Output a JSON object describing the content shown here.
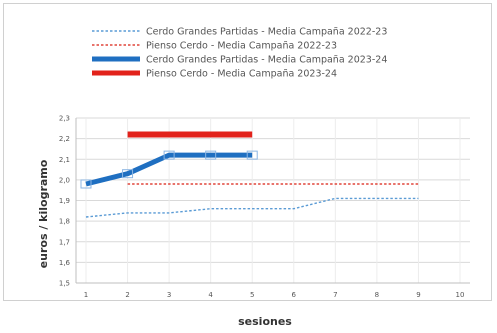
{
  "chart_data": {
    "type": "line",
    "xlabel": "sesiones",
    "ylabel": "euros / kilogramo",
    "x": [
      1,
      2,
      3,
      4,
      5,
      6,
      7,
      8,
      9,
      10
    ],
    "xlim": [
      1,
      10
    ],
    "ylim": [
      1.5,
      2.3
    ],
    "yticks": [
      "1,5",
      "1,6",
      "1,7",
      "1,8",
      "1,9",
      "2,0",
      "2,1",
      "2,2",
      "2,3"
    ],
    "legend_position": "top",
    "grid": true,
    "series": [
      {
        "name": "Cerdo Grandes Partidas - Media Campaña 2022-23",
        "style": "dotted",
        "width": 1.4,
        "color": "#5a9bd5",
        "x": [
          1,
          2,
          3,
          4,
          5,
          6,
          7,
          8,
          9
        ],
        "y": [
          1.82,
          1.84,
          1.84,
          1.86,
          1.86,
          1.86,
          1.91,
          1.91,
          1.91
        ]
      },
      {
        "name": "Pienso Cerdo - Media Campaña 2022-23",
        "style": "dotted",
        "width": 1.4,
        "color": "#e0453a",
        "x": [
          2,
          3,
          4,
          5,
          6,
          7,
          8,
          9
        ],
        "y": [
          1.98,
          1.98,
          1.98,
          1.98,
          1.98,
          1.98,
          1.98,
          1.98
        ]
      },
      {
        "name": "Cerdo Grandes Partidas - Media Campaña 2023-24",
        "style": "solid",
        "width": 5,
        "color": "#1f6fc1",
        "markers": true,
        "x": [
          1,
          2,
          3,
          4,
          5
        ],
        "y": [
          1.98,
          2.03,
          2.12,
          2.12,
          2.12
        ]
      },
      {
        "name": "Pienso Cerdo - Media Campaña 2023-24",
        "style": "solid",
        "width": 6,
        "color": "#e2221b",
        "x": [
          2,
          3,
          4,
          5
        ],
        "y": [
          2.22,
          2.22,
          2.22,
          2.22
        ]
      }
    ]
  }
}
